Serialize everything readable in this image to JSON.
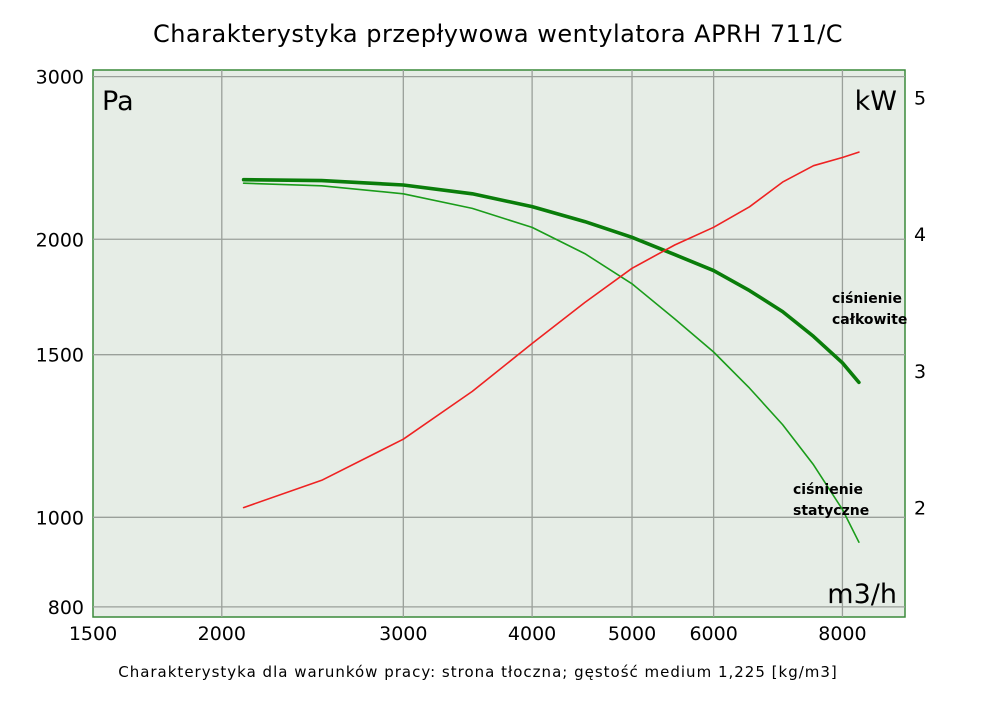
{
  "chart_data": {
    "type": "line",
    "title": "Charakterystyka przepływowa wentylatora APRH 711/C",
    "footnote": "Charakterystyka dla warunków pracy: strona tłoczna; gęstość medium 1,225 [kg/m3]",
    "x_scale": "log",
    "y_scale": "log",
    "xlim": [
      1500,
      9200
    ],
    "ylim": [
      780,
      3050
    ],
    "y2lim": [
      1.2,
      5.2
    ],
    "x_ticks": [
      "1500",
      "2000",
      "3000",
      "4000",
      "5000",
      "6000",
      "8000"
    ],
    "y_ticks": [
      "800",
      "1000",
      "1500",
      "2000",
      "3000"
    ],
    "y2_ticks": [
      "2",
      "3",
      "4",
      "5"
    ],
    "x_unit": "m3/h",
    "y_unit": "Pa",
    "y2_unit": "kW",
    "grid": true,
    "series": [
      {
        "name": "ciśnienie całkowite",
        "label_lines": [
          "ciśnienie",
          "całkowite"
        ],
        "axis": "left",
        "color": "#0a7d0a",
        "style": "thick",
        "x": [
          2100,
          2500,
          3000,
          3500,
          4000,
          4500,
          5000,
          5500,
          6000,
          6500,
          7000,
          7500,
          8000,
          8300
        ],
        "y": [
          2320,
          2315,
          2290,
          2240,
          2170,
          2090,
          2010,
          1925,
          1850,
          1760,
          1670,
          1570,
          1470,
          1400
        ]
      },
      {
        "name": "ciśnienie statyczne",
        "label_lines": [
          "ciśnienie",
          "statyczne"
        ],
        "axis": "left",
        "color": "#1a9c1a",
        "style": "thin",
        "x": [
          2100,
          2500,
          3000,
          3500,
          4000,
          4500,
          5000,
          5500,
          6000,
          6500,
          7000,
          7500,
          8000,
          8300
        ],
        "y": [
          2300,
          2285,
          2240,
          2160,
          2060,
          1930,
          1790,
          1640,
          1510,
          1380,
          1260,
          1140,
          1020,
          940
        ]
      },
      {
        "name": "moc",
        "axis": "right",
        "color": "#ee2222",
        "style": "thin",
        "x": [
          2100,
          2500,
          3000,
          3500,
          4000,
          4500,
          5000,
          5500,
          6000,
          6500,
          7000,
          7500,
          8000,
          8300
        ],
        "y": [
          2.0,
          2.2,
          2.5,
          2.85,
          3.2,
          3.5,
          3.75,
          3.92,
          4.05,
          4.2,
          4.38,
          4.5,
          4.56,
          4.6
        ]
      }
    ]
  }
}
